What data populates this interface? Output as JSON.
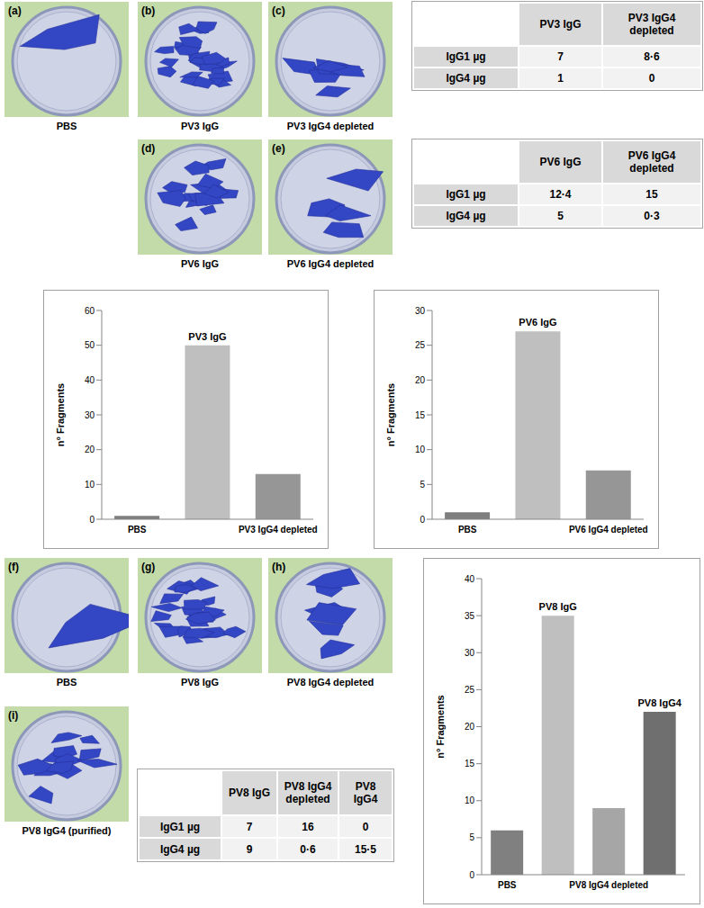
{
  "panels": [
    {
      "label": "(a)",
      "caption": "PBS"
    },
    {
      "label": "(b)",
      "caption": "PV3 IgG"
    },
    {
      "label": "(c)",
      "caption": "PV3 IgG4 depleted"
    },
    {
      "label": "(d)",
      "caption": "PV6 IgG"
    },
    {
      "label": "(e)",
      "caption": "PV6 IgG4 depleted"
    },
    {
      "label": "(f)",
      "caption": "PBS"
    },
    {
      "label": "(g)",
      "caption": "PV8 IgG"
    },
    {
      "label": "(h)",
      "caption": "PV8 IgG4 depleted"
    },
    {
      "label": "(i)",
      "caption": "PV8 IgG4 (purified)"
    }
  ],
  "tables": [
    {
      "header": [
        null,
        "PV3 IgG",
        "PV3 IgG4 depleted"
      ],
      "rows": [
        [
          "IgG1 µg",
          "7",
          "8·6"
        ],
        [
          "IgG4 µg",
          "1",
          "0"
        ]
      ]
    },
    {
      "header": [
        null,
        "PV6 IgG",
        "PV6 IgG4 depleted"
      ],
      "rows": [
        [
          "IgG1 µg",
          "12·4",
          "15"
        ],
        [
          "IgG4 µg",
          "5",
          "0·3"
        ]
      ]
    },
    {
      "header": [
        null,
        "PV8 IgG",
        "PV8 IgG4 depleted",
        "PV8 IgG4"
      ],
      "rows": [
        [
          "IgG1 µg",
          "7",
          "16",
          "0"
        ],
        [
          "IgG4 µg",
          "9",
          "0·6",
          "15·5"
        ]
      ]
    }
  ],
  "chart_data": [
    {
      "type": "bar",
      "ylabel": "n° Fragments",
      "categories": [
        "PBS",
        null,
        "PV3 IgG4 depleted"
      ],
      "bar_labels": [
        null,
        "PV3 IgG",
        null
      ],
      "values": [
        1,
        50,
        13
      ],
      "colors": [
        "#7f7f7f",
        "#bfbfbf",
        "#969696"
      ],
      "ylim": [
        0,
        60
      ],
      "yticks": [
        0,
        10,
        20,
        30,
        40,
        50,
        60
      ],
      "grid": false
    },
    {
      "type": "bar",
      "ylabel": "n° Fragments",
      "categories": [
        "PBS",
        null,
        "PV6 IgG4 depleted"
      ],
      "bar_labels": [
        null,
        "PV6 IgG",
        null
      ],
      "values": [
        1,
        27,
        7
      ],
      "colors": [
        "#7f7f7f",
        "#bfbfbf",
        "#969696"
      ],
      "ylim": [
        0,
        30
      ],
      "yticks": [
        0,
        5,
        10,
        15,
        20,
        25,
        30
      ],
      "grid": false
    },
    {
      "type": "bar",
      "ylabel": "n° Fragments",
      "categories": [
        "PBS",
        null,
        "PV8 IgG4 depleted",
        null
      ],
      "bar_labels": [
        null,
        "PV8 IgG",
        null,
        "PV8 IgG4"
      ],
      "values": [
        6,
        35,
        9,
        22
      ],
      "colors": [
        "#808080",
        "#bfbfbf",
        "#a6a6a6",
        "#6f6f6f"
      ],
      "ylim": [
        0,
        40
      ],
      "yticks": [
        0,
        5,
        10,
        15,
        20,
        25,
        30,
        35,
        40
      ],
      "grid": false
    }
  ]
}
